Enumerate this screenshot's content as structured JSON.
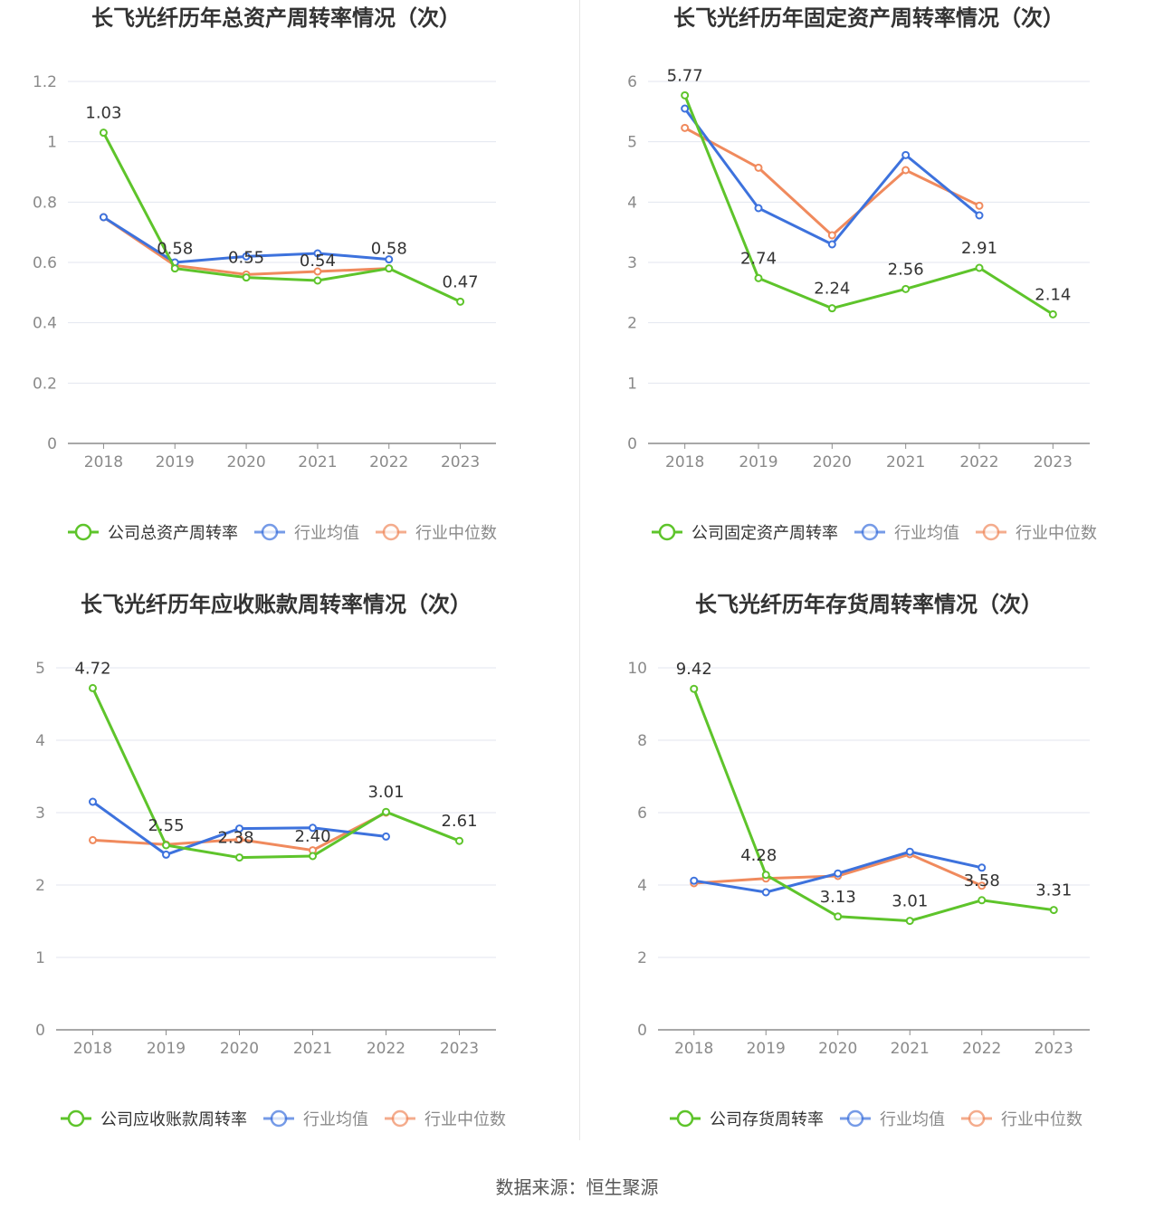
{
  "source_text": "数据来源：恒生聚源",
  "colors": {
    "company": "#5ec42b",
    "avg": "#3d72dd",
    "median": "#f08a5d",
    "grid": "#e3e6ef",
    "axis": "#8c8c8c",
    "tick_text": "#8a8a8a",
    "label_text": "#333333",
    "title_text": "#333333"
  },
  "chart_data": [
    {
      "type": "line",
      "title": "长飞光纤历年总资产周转率情况（次）",
      "categories": [
        "2018",
        "2019",
        "2020",
        "2021",
        "2022",
        "2023"
      ],
      "ylim": [
        0,
        1.2
      ],
      "yticks": [
        0,
        0.2,
        0.4,
        0.6,
        0.8,
        1,
        1.2
      ],
      "ytick_labels": [
        "0",
        "0.2",
        "0.4",
        "0.6",
        "0.8",
        "1",
        "1.2"
      ],
      "legend_position": "bottom",
      "series": [
        {
          "name": "公司总资产周转率",
          "key": "company",
          "values": [
            1.03,
            0.58,
            0.55,
            0.54,
            0.58,
            0.47
          ],
          "labels": [
            "1.03",
            "0.58",
            "0.55",
            "0.54",
            "0.58",
            "0.47"
          ]
        },
        {
          "name": "行业均值",
          "key": "avg",
          "values": [
            0.75,
            0.6,
            0.62,
            0.63,
            0.61,
            null
          ]
        },
        {
          "name": "行业中位数",
          "key": "median",
          "values": [
            0.75,
            0.59,
            0.56,
            0.57,
            0.58,
            null
          ]
        }
      ]
    },
    {
      "type": "line",
      "title": "长飞光纤历年固定资产周转率情况（次）",
      "categories": [
        "2018",
        "2019",
        "2020",
        "2021",
        "2022",
        "2023"
      ],
      "ylim": [
        0,
        6
      ],
      "yticks": [
        0,
        1,
        2,
        3,
        4,
        5,
        6
      ],
      "ytick_labels": [
        "0",
        "1",
        "2",
        "3",
        "4",
        "5",
        "6"
      ],
      "legend_position": "bottom",
      "series": [
        {
          "name": "公司固定资产周转率",
          "key": "company",
          "values": [
            5.77,
            2.74,
            2.24,
            2.56,
            2.91,
            2.14
          ],
          "labels": [
            "5.77",
            "2.74",
            "2.24",
            "2.56",
            "2.91",
            "2.14"
          ]
        },
        {
          "name": "行业均值",
          "key": "avg",
          "values": [
            5.55,
            3.9,
            3.3,
            4.78,
            3.78,
            null
          ]
        },
        {
          "name": "行业中位数",
          "key": "median",
          "values": [
            5.23,
            4.57,
            3.45,
            4.53,
            3.94,
            null
          ]
        }
      ]
    },
    {
      "type": "line",
      "title": "长飞光纤历年应收账款周转率情况（次）",
      "categories": [
        "2018",
        "2019",
        "2020",
        "2021",
        "2022",
        "2023"
      ],
      "ylim": [
        0,
        5
      ],
      "yticks": [
        0,
        1,
        2,
        3,
        4,
        5
      ],
      "ytick_labels": [
        "0",
        "1",
        "2",
        "3",
        "4",
        "5"
      ],
      "legend_position": "bottom",
      "series": [
        {
          "name": "公司应收账款周转率",
          "key": "company",
          "values": [
            4.72,
            2.55,
            2.38,
            2.4,
            3.01,
            2.61
          ],
          "labels": [
            "4.72",
            "2.55",
            "2.38",
            "2.40",
            "3.01",
            "2.61"
          ]
        },
        {
          "name": "行业均值",
          "key": "avg",
          "values": [
            3.15,
            2.42,
            2.78,
            2.79,
            2.67,
            null
          ]
        },
        {
          "name": "行业中位数",
          "key": "median",
          "values": [
            2.62,
            2.56,
            2.63,
            2.48,
            3.0,
            null
          ]
        }
      ]
    },
    {
      "type": "line",
      "title": "长飞光纤历年存货周转率情况（次）",
      "categories": [
        "2018",
        "2019",
        "2020",
        "2021",
        "2022",
        "2023"
      ],
      "ylim": [
        0,
        10
      ],
      "yticks": [
        0,
        2,
        4,
        6,
        8,
        10
      ],
      "ytick_labels": [
        "0",
        "2",
        "4",
        "6",
        "8",
        "10"
      ],
      "legend_position": "bottom",
      "series": [
        {
          "name": "公司存货周转率",
          "key": "company",
          "values": [
            9.42,
            4.28,
            3.13,
            3.01,
            3.58,
            3.31
          ],
          "labels": [
            "9.42",
            "4.28",
            "3.13",
            "3.01",
            "3.58",
            "3.31"
          ]
        },
        {
          "name": "行业均值",
          "key": "avg",
          "values": [
            4.12,
            3.8,
            4.32,
            4.92,
            4.48,
            null
          ]
        },
        {
          "name": "行业中位数",
          "key": "median",
          "values": [
            4.05,
            4.18,
            4.25,
            4.85,
            3.98,
            null
          ]
        }
      ]
    }
  ]
}
